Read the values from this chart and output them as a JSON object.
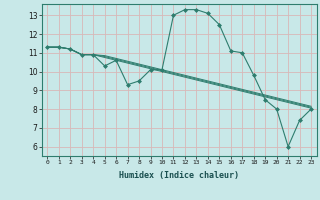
{
  "xlabel": "Humidex (Indice chaleur)",
  "ylabel": "",
  "background_color": "#c8e8e8",
  "grid_color": "#d8b8b8",
  "line_color": "#2e7d6e",
  "marker_color": "#2e7d6e",
  "xlim": [
    -0.5,
    23.5
  ],
  "ylim": [
    5.5,
    13.6
  ],
  "xticks": [
    0,
    1,
    2,
    3,
    4,
    5,
    6,
    7,
    8,
    9,
    10,
    11,
    12,
    13,
    14,
    15,
    16,
    17,
    18,
    19,
    20,
    21,
    22,
    23
  ],
  "yticks": [
    6,
    7,
    8,
    9,
    10,
    11,
    12,
    13
  ],
  "series": [
    {
      "x": [
        0,
        1,
        2,
        3,
        4,
        5,
        6,
        7,
        8,
        9,
        10,
        11,
        12,
        13,
        14,
        15,
        16,
        17,
        18,
        19,
        20,
        21,
        22,
        23
      ],
      "y": [
        11.3,
        11.3,
        11.2,
        10.9,
        10.9,
        10.3,
        10.6,
        9.3,
        9.5,
        10.1,
        10.1,
        13.0,
        13.3,
        13.3,
        13.1,
        12.5,
        11.1,
        11.0,
        9.8,
        8.5,
        8.0,
        6.0,
        7.4,
        8.0
      ],
      "with_markers": true
    },
    {
      "x": [
        0,
        1,
        2,
        3,
        4,
        5,
        6,
        7,
        8,
        9,
        10,
        11,
        12,
        13,
        14,
        15,
        16,
        17,
        18,
        19,
        20,
        21,
        22,
        23
      ],
      "y": [
        11.3,
        11.3,
        11.2,
        10.9,
        10.9,
        10.85,
        10.7,
        10.55,
        10.4,
        10.25,
        10.1,
        9.95,
        9.8,
        9.65,
        9.5,
        9.35,
        9.2,
        9.05,
        8.9,
        8.75,
        8.6,
        8.45,
        8.3,
        8.15
      ],
      "with_markers": false
    },
    {
      "x": [
        0,
        1,
        2,
        3,
        4,
        5,
        6,
        7,
        8,
        9,
        10,
        11,
        12,
        13,
        14,
        15,
        16,
        17,
        18,
        19,
        20,
        21,
        22,
        23
      ],
      "y": [
        11.3,
        11.3,
        11.2,
        10.9,
        10.9,
        10.8,
        10.65,
        10.5,
        10.35,
        10.2,
        10.05,
        9.9,
        9.75,
        9.6,
        9.45,
        9.3,
        9.15,
        9.0,
        8.85,
        8.7,
        8.55,
        8.4,
        8.25,
        8.1
      ],
      "with_markers": false
    },
    {
      "x": [
        0,
        1,
        2,
        3,
        4,
        5,
        6,
        7,
        8,
        9,
        10,
        11,
        12,
        13,
        14,
        15,
        16,
        17,
        18,
        19,
        20,
        21,
        22,
        23
      ],
      "y": [
        11.3,
        11.3,
        11.2,
        10.9,
        10.9,
        10.75,
        10.6,
        10.45,
        10.3,
        10.15,
        10.0,
        9.85,
        9.7,
        9.55,
        9.4,
        9.25,
        9.1,
        8.95,
        8.8,
        8.65,
        8.5,
        8.35,
        8.2,
        8.05
      ],
      "with_markers": false
    }
  ]
}
